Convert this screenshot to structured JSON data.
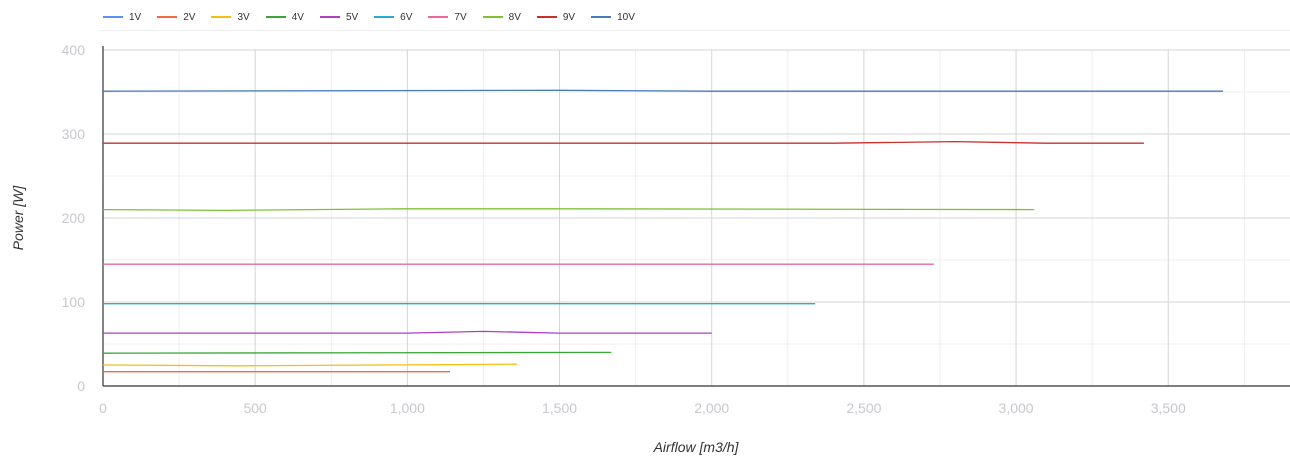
{
  "chart_data": {
    "type": "line",
    "title": "",
    "xlabel": "Airflow [m3/h]",
    "ylabel": "Power [W]",
    "xlim": [
      0,
      3900
    ],
    "ylim": [
      0,
      400
    ],
    "x_ticks": [
      "0",
      "500",
      "1,000",
      "1,500",
      "2,000",
      "2,500",
      "3,000",
      "3,500"
    ],
    "y_ticks": [
      "0",
      "100",
      "200",
      "300",
      "400"
    ],
    "x_tick_values": [
      0,
      500,
      1000,
      1500,
      2000,
      2500,
      3000,
      3500
    ],
    "y_tick_values": [
      0,
      100,
      200,
      300,
      400
    ],
    "grid": true,
    "legend_position": "top-left",
    "series": [
      {
        "name": "1V",
        "color": "#5b8ff9",
        "points": []
      },
      {
        "name": "2V",
        "color": "#ef6b3a",
        "points": [
          [
            0,
            17
          ],
          [
            1140,
            17
          ]
        ]
      },
      {
        "name": "3V",
        "color": "#f6bd16",
        "points": [
          [
            0,
            25
          ],
          [
            450,
            24
          ],
          [
            900,
            25
          ],
          [
            1360,
            26
          ]
        ]
      },
      {
        "name": "4V",
        "color": "#3aa63a",
        "points": [
          [
            0,
            39
          ],
          [
            1670,
            40
          ]
        ]
      },
      {
        "name": "5V",
        "color": "#b13ec6",
        "points": [
          [
            0,
            63
          ],
          [
            1000,
            63
          ],
          [
            1250,
            65
          ],
          [
            1500,
            63
          ],
          [
            2000,
            63
          ]
        ]
      },
      {
        "name": "6V",
        "color": "#2ea7d6",
        "points": [
          [
            0,
            98
          ],
          [
            2340,
            98
          ]
        ]
      },
      {
        "name": "7V",
        "color": "#e86a9a",
        "points": [
          [
            0,
            145
          ],
          [
            2730,
            145
          ]
        ]
      },
      {
        "name": "8V",
        "color": "#7ec233",
        "points": [
          [
            0,
            210
          ],
          [
            400,
            209
          ],
          [
            1000,
            211
          ],
          [
            1500,
            211
          ],
          [
            3060,
            210
          ]
        ]
      },
      {
        "name": "9V",
        "color": "#c9302c",
        "points": [
          [
            0,
            289
          ],
          [
            2400,
            289
          ],
          [
            2800,
            291
          ],
          [
            3100,
            289
          ],
          [
            3420,
            289
          ]
        ]
      },
      {
        "name": "10V",
        "color": "#4a7ab7",
        "points": [
          [
            0,
            351
          ],
          [
            1500,
            352
          ],
          [
            2000,
            351
          ],
          [
            3680,
            351
          ]
        ]
      }
    ]
  }
}
